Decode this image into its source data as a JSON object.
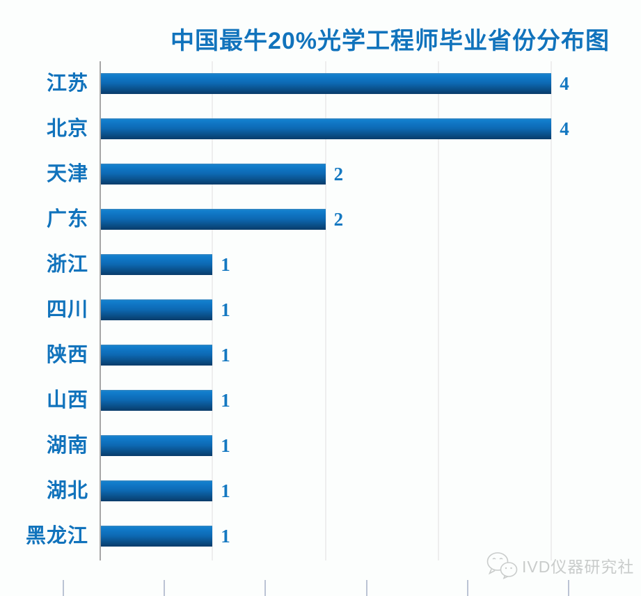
{
  "title": "中国最牛20%光学工程师毕业省份分布图",
  "watermark": {
    "text": "IVD仪器研究社",
    "icon": "wechat-icon"
  },
  "colors": {
    "accent_blue": "#1173BC",
    "value_label_blue": "#1478C1",
    "bar_gradient_top": "#1380CE",
    "bar_gradient_bottom": "#0A3C6A",
    "axis_gray": "#A6A6A6",
    "gridline_gray": "#EEEEEE",
    "watermark_gray": "#C9CCCB",
    "bottom_tick_gray": "#BBC3D4",
    "background": "#FCFEFD"
  },
  "chart_data": {
    "type": "bar",
    "orientation": "horizontal",
    "title": "中国最牛20%光学工程师毕业省份分布图",
    "categories": [
      "江苏",
      "北京",
      "天津",
      "广东",
      "浙江",
      "四川",
      "陕西",
      "山西",
      "湖南",
      "湖北",
      "黑龙江"
    ],
    "values": [
      4,
      4,
      2,
      2,
      1,
      1,
      1,
      1,
      1,
      1,
      1
    ],
    "data_labels": [
      4,
      4,
      2,
      2,
      1,
      1,
      1,
      1,
      1,
      1,
      1
    ],
    "xlabel": "",
    "ylabel": "",
    "xlim": [
      0,
      4
    ],
    "gridline_values": [
      1,
      2,
      3,
      4
    ],
    "grid": "vertical-on",
    "legend": "none"
  }
}
